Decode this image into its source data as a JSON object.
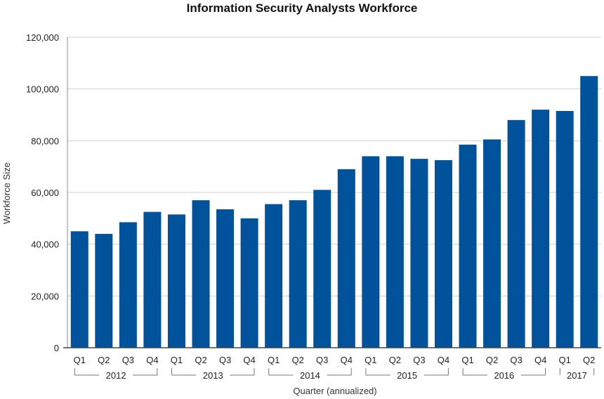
{
  "chart_data": {
    "type": "bar",
    "title": "Information Security Analysts Workforce",
    "xlabel": "Quarter (annualized)",
    "ylabel": "Workforce Size",
    "ylim": [
      0,
      120000
    ],
    "yticks": [
      "0",
      "20,000",
      "40,000",
      "60,000",
      "80,000",
      "100,000",
      "120,000"
    ],
    "ytick_values": [
      0,
      20000,
      40000,
      60000,
      80000,
      100000,
      120000
    ],
    "categories": [
      "Q1",
      "Q2",
      "Q3",
      "Q4",
      "Q1",
      "Q2",
      "Q3",
      "Q4",
      "Q1",
      "Q2",
      "Q3",
      "Q4",
      "Q1",
      "Q2",
      "Q3",
      "Q4",
      "Q1",
      "Q2",
      "Q3",
      "Q4",
      "Q1",
      "Q2"
    ],
    "groups": [
      {
        "label": "2012",
        "count": 4
      },
      {
        "label": "2013",
        "count": 4
      },
      {
        "label": "2014",
        "count": 4
      },
      {
        "label": "2015",
        "count": 4
      },
      {
        "label": "2016",
        "count": 4
      },
      {
        "label": "2017",
        "count": 2
      }
    ],
    "values": [
      45000,
      44000,
      48500,
      52500,
      51500,
      57000,
      53500,
      50000,
      55500,
      57000,
      61000,
      69000,
      74000,
      74000,
      73000,
      72500,
      78500,
      80500,
      88000,
      92000,
      91500,
      105000
    ],
    "grid": true,
    "bar_color": "#00529b"
  }
}
